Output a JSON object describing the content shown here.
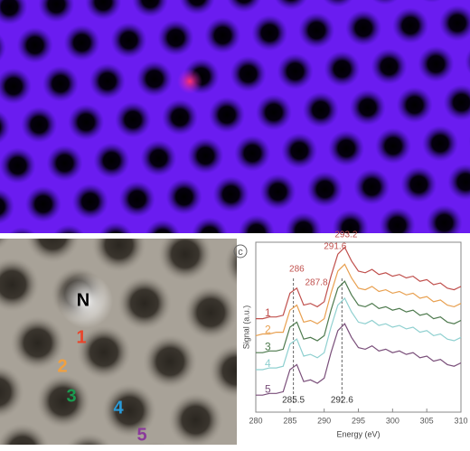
{
  "image_b": {
    "labels": [
      "N",
      "1",
      "2",
      "3",
      "4",
      "5"
    ],
    "label_colors": [
      "#000000",
      "#e8452c",
      "#f0a040",
      "#1a9a50",
      "#2a9ad8",
      "#8a3a9a"
    ]
  },
  "chart_data": {
    "type": "line",
    "panel_label": "c",
    "xlabel": "Energy (eV)",
    "ylabel": "Signal (a.u.)",
    "x": [
      280,
      281,
      282,
      283,
      284,
      285,
      286,
      287,
      288,
      289,
      290,
      291,
      292,
      293,
      294,
      295,
      296,
      297,
      298,
      299,
      300,
      301,
      302,
      303,
      304,
      305,
      306,
      307,
      308,
      309,
      310
    ],
    "xlim": [
      280,
      310
    ],
    "xticks": [
      280,
      285,
      290,
      295,
      300,
      305,
      310
    ],
    "ylim": [
      0,
      100
    ],
    "series": [
      {
        "name": "1",
        "color": "#c0504d",
        "values": [
          55,
          55,
          56,
          56,
          57,
          70,
          73,
          63,
          64,
          62,
          65,
          80,
          93,
          97,
          89,
          83,
          82,
          84,
          81,
          82,
          80,
          81,
          79,
          80,
          77,
          78,
          75,
          76,
          73,
          72,
          74
        ]
      },
      {
        "name": "2",
        "color": "#e8a050",
        "values": [
          45,
          46,
          46,
          47,
          47,
          60,
          63,
          53,
          54,
          52,
          55,
          70,
          83,
          87,
          79,
          73,
          72,
          74,
          71,
          72,
          70,
          71,
          69,
          70,
          67,
          68,
          65,
          66,
          63,
          62,
          64
        ]
      },
      {
        "name": "3",
        "color": "#4e7a4e",
        "values": [
          35,
          35,
          36,
          36,
          37,
          50,
          53,
          43,
          44,
          42,
          45,
          60,
          73,
          77,
          69,
          63,
          62,
          64,
          61,
          62,
          60,
          61,
          59,
          60,
          57,
          58,
          55,
          56,
          53,
          52,
          54
        ]
      },
      {
        "name": "4",
        "color": "#8fd0d0",
        "values": [
          25,
          25,
          26,
          26,
          27,
          40,
          43,
          33,
          34,
          32,
          35,
          50,
          63,
          67,
          59,
          53,
          52,
          54,
          51,
          52,
          50,
          51,
          49,
          50,
          47,
          48,
          45,
          46,
          43,
          42,
          44
        ]
      },
      {
        "name": "5",
        "color": "#7a4f7a",
        "values": [
          10,
          10,
          11,
          11,
          12,
          25,
          28,
          18,
          19,
          17,
          20,
          35,
          48,
          52,
          44,
          38,
          37,
          39,
          36,
          37,
          35,
          36,
          34,
          35,
          32,
          33,
          30,
          31,
          28,
          27,
          29
        ]
      }
    ],
    "peak_labels": [
      286,
      287.8,
      291.6,
      293.2
    ],
    "peak_label_color": "#c0504d",
    "edge_labels": [
      285.5,
      292.6
    ]
  }
}
